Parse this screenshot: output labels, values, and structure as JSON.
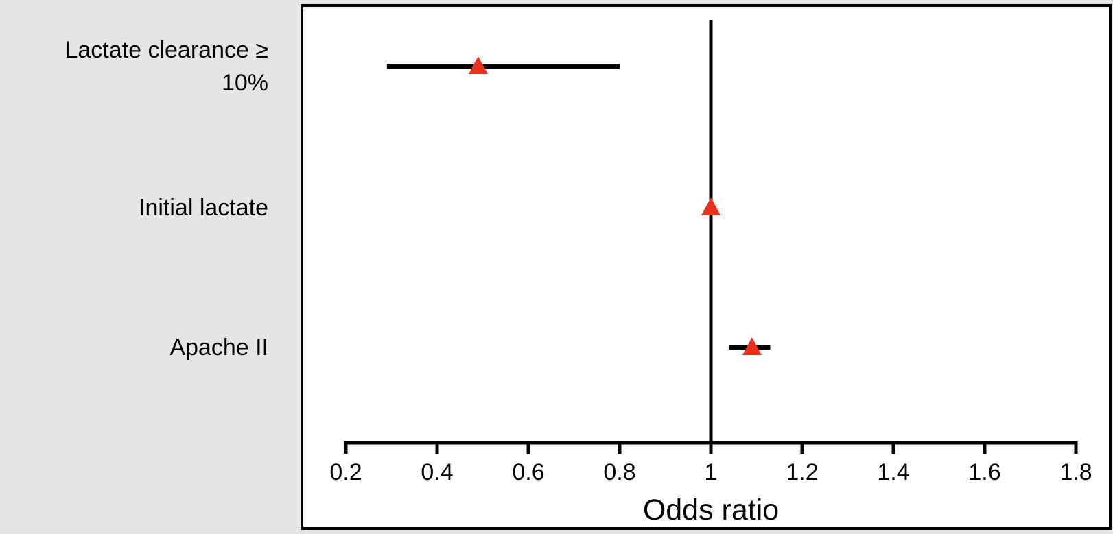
{
  "chart_data": {
    "type": "forest",
    "categories": [
      "Lactate clearance ≥ 10%",
      "Initial lactate",
      "Apache II"
    ],
    "values": [
      0.49,
      1.0,
      1.09
    ],
    "lower": [
      0.29,
      0.99,
      1.04
    ],
    "upper": [
      0.8,
      1.01,
      1.13
    ],
    "color": "#e8321e",
    "xlabel": "Odds ratio",
    "xlim": [
      0.2,
      1.8
    ],
    "xticks": [
      0.2,
      0.4,
      0.6,
      0.8,
      1,
      1.2,
      1.4,
      1.6,
      1.8
    ],
    "reference_line": 1
  }
}
